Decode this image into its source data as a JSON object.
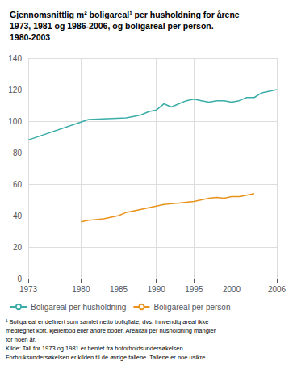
{
  "chart_data": {
    "type": "line",
    "title": "Gjennomsnittlig m² boligareal¹ per husholdning for årene\n1973, 1981 og 1986-2006, og boligareal per person.\n1980-2003",
    "series": [
      {
        "name": "Boligareal per husholdning",
        "color": "#3aada8",
        "x": [
          1973,
          1981,
          1986,
          1987,
          1988,
          1989,
          1990,
          1991,
          1992,
          1993,
          1994,
          1995,
          1996,
          1997,
          1998,
          1999,
          2000,
          2001,
          2002,
          2003,
          2004,
          2005,
          2006
        ],
        "values": [
          88,
          101,
          102,
          103,
          104,
          106,
          107,
          111,
          109,
          111,
          113,
          114,
          113,
          112,
          113,
          113,
          112,
          113,
          115,
          115,
          118,
          119,
          120
        ]
      },
      {
        "name": "Boligareal per person",
        "color": "#e8921a",
        "x": [
          1980,
          1981,
          1982,
          1983,
          1984,
          1985,
          1986,
          1987,
          1988,
          1989,
          1990,
          1991,
          1992,
          1993,
          1994,
          1995,
          1996,
          1997,
          1998,
          1999,
          2000,
          2001,
          2002,
          2003
        ],
        "values": [
          36,
          37,
          37.5,
          38,
          39,
          40,
          42,
          43,
          44,
          45,
          46,
          47,
          47.5,
          48,
          48.5,
          49,
          50,
          51,
          51.5,
          51,
          52,
          52,
          53,
          54
        ]
      }
    ],
    "xlim": [
      1973,
      2006
    ],
    "xticks": [
      1973,
      1980,
      1985,
      1990,
      1995,
      2000,
      2006
    ],
    "ylim": [
      0,
      140
    ],
    "yticks": [
      0,
      20,
      40,
      60,
      80,
      100,
      120,
      140
    ],
    "grid": true,
    "legend": "bottom",
    "annotations": [
      "¹ Boligareal er definert som samlet netto boligflate, dvs. innvendig areal ikke\nmedregnet kott, kjellerbod eller andre boder. Arealtall per husholdning mangler\nfor noen år.\nKilde: Tall for 1973 og 1981 er hentet fra boforholdsundersøkelsen.\nForbruksundersøkelsen er kilden til de øvrige tallene. Tallene er noe usikre."
    ]
  }
}
